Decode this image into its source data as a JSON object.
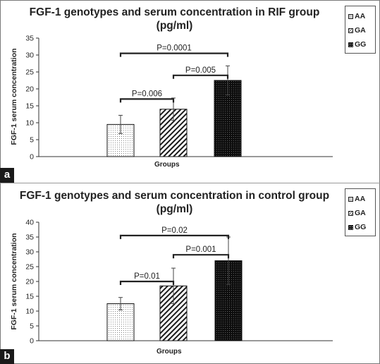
{
  "panels": [
    {
      "tag": "a",
      "title": "FGF-1 genotypes and serum concentration in RIF group (pg/ml)",
      "legend": [
        "AA",
        "GA",
        "GG"
      ]
    },
    {
      "tag": "b",
      "title": "FGF-1 genotypes and serum concentration in control group (pg/ml)",
      "legend": [
        "AA",
        "GA",
        "GG"
      ]
    }
  ],
  "chart_data": [
    {
      "type": "bar",
      "title": "FGF-1 genotypes and serum concentration in RIF group (pg/ml)",
      "xlabel": "Groups",
      "ylabel": "FGF-1 serum concentration",
      "ylim": [
        0,
        35
      ],
      "yticks": [
        0,
        5,
        10,
        15,
        20,
        25,
        30,
        35
      ],
      "legend_position": "top-right",
      "series": [
        {
          "name": "AA",
          "value": 9.5,
          "error": 2.7,
          "pattern": "dots"
        },
        {
          "name": "GA",
          "value": 14,
          "error": 3.3,
          "pattern": "hatch"
        },
        {
          "name": "GG",
          "value": 22.5,
          "error": 4.3,
          "pattern": "black"
        }
      ],
      "comparisons": [
        {
          "from": 0,
          "to": 1,
          "label": "P=0.006",
          "y": 17
        },
        {
          "from": 1,
          "to": 2,
          "label": "P=0.005",
          "y": 24
        },
        {
          "from": 0,
          "to": 2,
          "label": "P=0.0001",
          "y": 30.5
        }
      ]
    },
    {
      "type": "bar",
      "title": "FGF-1 genotypes and serum concentration in control group (pg/ml)",
      "xlabel": "Groups",
      "ylabel": "FGF-1 serum concentration",
      "ylim": [
        0,
        40
      ],
      "yticks": [
        0,
        5,
        10,
        15,
        20,
        25,
        30,
        35,
        40
      ],
      "legend_position": "top-right",
      "series": [
        {
          "name": "AA",
          "value": 12.5,
          "error": 2.1,
          "pattern": "dots"
        },
        {
          "name": "GA",
          "value": 18.5,
          "error": 6,
          "pattern": "hatch"
        },
        {
          "name": "GG",
          "value": 27,
          "error": 8,
          "pattern": "black"
        }
      ],
      "comparisons": [
        {
          "from": 0,
          "to": 1,
          "label": "P=0.01",
          "y": 20
        },
        {
          "from": 1,
          "to": 2,
          "label": "P=0.001",
          "y": 29
        },
        {
          "from": 0,
          "to": 2,
          "label": "P=0.02",
          "y": 35.5
        }
      ]
    }
  ],
  "colors": {
    "axis": "#333333",
    "bracket": "#222222",
    "bar_edge": "#111111",
    "text": "#222222"
  }
}
